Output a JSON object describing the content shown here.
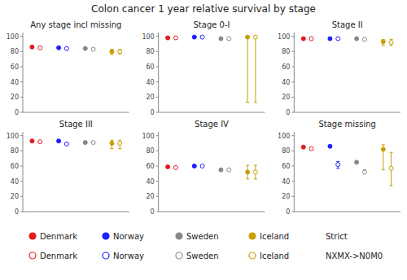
{
  "title": "Colon cancer 1 year relative survival by stage",
  "chart_data": [
    {
      "type": "dot",
      "title": "Any stage incl missing",
      "categories": [
        "Denmark",
        "Norway",
        "Sweden",
        "Iceland"
      ],
      "colors": [
        "#e41a1c",
        "#1f1fff",
        "#888888",
        "#c8a000"
      ],
      "series": [
        {
          "name": "Strict",
          "marker": "filled-circle",
          "values": [
            86,
            85,
            84,
            80
          ],
          "ci_low": [
            86,
            85,
            84,
            76
          ],
          "ci_high": [
            86,
            85,
            84,
            83
          ]
        },
        {
          "name": "NXMX->N0M0",
          "marker": "open-circle",
          "values": [
            85,
            84,
            83,
            80
          ],
          "ci_low": [
            85,
            84,
            83,
            77
          ],
          "ci_high": [
            85,
            84,
            83,
            83
          ]
        }
      ],
      "ylim": [
        0,
        105
      ],
      "yticks": [
        0,
        20,
        40,
        60,
        80,
        100
      ],
      "grid": false,
      "tick_labels": "y",
      "legend": "bottom"
    },
    {
      "type": "dot",
      "title": "Stage 0-I",
      "categories": [
        "Denmark",
        "Norway",
        "Sweden",
        "Iceland"
      ],
      "colors": [
        "#e41a1c",
        "#1f1fff",
        "#888888",
        "#c8a000"
      ],
      "series": [
        {
          "name": "Strict",
          "marker": "filled-circle",
          "values": [
            98,
            99,
            97,
            99
          ],
          "ci_low": [
            98,
            99,
            97,
            13
          ],
          "ci_high": [
            98,
            99,
            97,
            99
          ]
        },
        {
          "name": "NXMX->N0M0",
          "marker": "open-circle",
          "values": [
            98,
            99,
            97,
            99
          ],
          "ci_low": [
            98,
            99,
            97,
            13
          ],
          "ci_high": [
            98,
            99,
            97,
            99
          ]
        }
      ],
      "ylim": [
        0,
        105
      ],
      "yticks": [
        0,
        20,
        40,
        60,
        80,
        100
      ],
      "grid": false,
      "tick_labels": "y",
      "legend": "bottom"
    },
    {
      "type": "dot",
      "title": "Stage II",
      "categories": [
        "Denmark",
        "Norway",
        "Sweden",
        "Iceland"
      ],
      "colors": [
        "#e41a1c",
        "#1f1fff",
        "#888888",
        "#c8a000"
      ],
      "series": [
        {
          "name": "Strict",
          "marker": "filled-circle",
          "values": [
            97,
            97,
            97,
            93
          ],
          "ci_low": [
            97,
            97,
            97,
            88
          ],
          "ci_high": [
            97,
            97,
            97,
            96
          ]
        },
        {
          "name": "NXMX->N0M0",
          "marker": "open-circle",
          "values": [
            97,
            97,
            96,
            92
          ],
          "ci_low": [
            97,
            97,
            96,
            88
          ],
          "ci_high": [
            97,
            97,
            96,
            96
          ]
        }
      ],
      "ylim": [
        0,
        105
      ],
      "yticks": [
        0,
        20,
        40,
        60,
        80,
        100
      ],
      "grid": false,
      "tick_labels": "y",
      "legend": "bottom"
    },
    {
      "type": "dot",
      "title": "Stage III",
      "categories": [
        "Denmark",
        "Norway",
        "Sweden",
        "Iceland"
      ],
      "colors": [
        "#e41a1c",
        "#1f1fff",
        "#888888",
        "#c8a000"
      ],
      "series": [
        {
          "name": "Strict",
          "marker": "filled-circle",
          "values": [
            93,
            93,
            91,
            90
          ],
          "ci_low": [
            93,
            93,
            91,
            83
          ],
          "ci_high": [
            93,
            93,
            91,
            94
          ]
        },
        {
          "name": "NXMX->N0M0",
          "marker": "open-circle",
          "values": [
            92,
            89,
            91,
            90
          ],
          "ci_low": [
            92,
            89,
            91,
            83
          ],
          "ci_high": [
            92,
            89,
            91,
            94
          ]
        }
      ],
      "ylim": [
        0,
        105
      ],
      "yticks": [
        0,
        20,
        40,
        60,
        80,
        100
      ],
      "grid": false,
      "tick_labels": "y",
      "legend": "bottom"
    },
    {
      "type": "dot",
      "title": "Stage IV",
      "categories": [
        "Denmark",
        "Norway",
        "Sweden",
        "Iceland"
      ],
      "colors": [
        "#e41a1c",
        "#1f1fff",
        "#888888",
        "#c8a000"
      ],
      "series": [
        {
          "name": "Strict",
          "marker": "filled-circle",
          "values": [
            59,
            60,
            55,
            52
          ],
          "ci_low": [
            59,
            60,
            55,
            43
          ],
          "ci_high": [
            59,
            60,
            55,
            61
          ]
        },
        {
          "name": "NXMX->N0M0",
          "marker": "open-circle",
          "values": [
            58,
            60,
            55,
            52
          ],
          "ci_low": [
            58,
            60,
            55,
            43
          ],
          "ci_high": [
            58,
            60,
            55,
            61
          ]
        }
      ],
      "ylim": [
        0,
        105
      ],
      "yticks": [
        0,
        20,
        40,
        60,
        80,
        100
      ],
      "grid": false,
      "tick_labels": "y",
      "legend": "bottom"
    },
    {
      "type": "dot",
      "title": "Stage missing",
      "categories": [
        "Denmark",
        "Norway",
        "Sweden",
        "Iceland"
      ],
      "colors": [
        "#e41a1c",
        "#1f1fff",
        "#888888",
        "#c8a000"
      ],
      "series": [
        {
          "name": "Strict",
          "marker": "filled-circle",
          "values": [
            85,
            86,
            65,
            82
          ],
          "ci_low": [
            85,
            86,
            65,
            55
          ],
          "ci_high": [
            85,
            86,
            65,
            88
          ]
        },
        {
          "name": "NXMX->N0M0",
          "marker": "open-circle",
          "values": [
            83,
            62,
            52,
            57
          ],
          "ci_low": [
            83,
            57,
            50,
            34
          ],
          "ci_high": [
            83,
            66,
            55,
            78
          ]
        }
      ],
      "ylim": [
        0,
        105
      ],
      "yticks": [
        0,
        20,
        40,
        60,
        80,
        100
      ],
      "grid": false,
      "tick_labels": "y",
      "legend": "bottom"
    }
  ]
}
